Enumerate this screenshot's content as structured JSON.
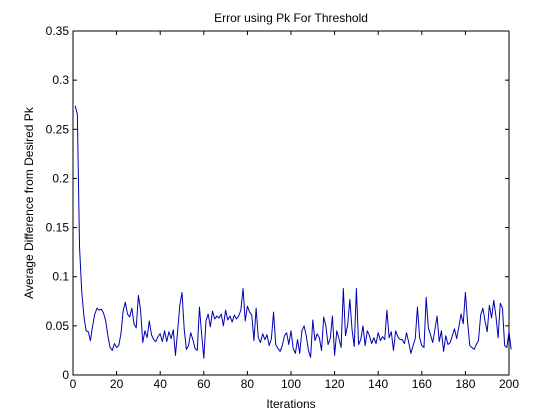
{
  "chart_data": {
    "type": "line",
    "title": "Error using Pk For Threshold",
    "xlabel": "Iterations",
    "ylabel": "Average Difference from Desired Pk",
    "xlim": [
      0,
      200
    ],
    "ylim": [
      0,
      0.35
    ],
    "grid": false,
    "x_ticks": [
      0,
      20,
      40,
      60,
      80,
      100,
      120,
      140,
      160,
      180,
      200
    ],
    "x_tick_labels": [
      "0",
      "20",
      "40",
      "60",
      "80",
      "100",
      "120",
      "140",
      "160",
      "180",
      "200"
    ],
    "y_ticks": [
      0,
      0.05,
      0.1,
      0.15,
      0.2,
      0.25,
      0.3,
      0.35
    ],
    "y_tick_labels": [
      "0",
      "0.05",
      "0.1",
      "0.15",
      "0.2",
      "0.25",
      "0.3",
      "0.35"
    ],
    "series": [
      {
        "color": "#0000b4",
        "x_start": 1,
        "x_step": 1,
        "values": [
          0.274,
          0.265,
          0.13,
          0.085,
          0.06,
          0.045,
          0.044,
          0.035,
          0.05,
          0.062,
          0.068,
          0.066,
          0.067,
          0.063,
          0.055,
          0.04,
          0.028,
          0.025,
          0.032,
          0.028,
          0.03,
          0.042,
          0.065,
          0.074,
          0.062,
          0.059,
          0.068,
          0.052,
          0.048,
          0.081,
          0.066,
          0.033,
          0.045,
          0.038,
          0.055,
          0.041,
          0.036,
          0.034,
          0.039,
          0.042,
          0.034,
          0.045,
          0.034,
          0.044,
          0.037,
          0.046,
          0.02,
          0.045,
          0.071,
          0.084,
          0.047,
          0.026,
          0.03,
          0.043,
          0.036,
          0.027,
          0.025,
          0.069,
          0.042,
          0.017,
          0.055,
          0.062,
          0.049,
          0.065,
          0.057,
          0.06,
          0.058,
          0.062,
          0.05,
          0.066,
          0.056,
          0.06,
          0.054,
          0.061,
          0.057,
          0.06,
          0.066,
          0.088,
          0.055,
          0.07,
          0.064,
          0.061,
          0.035,
          0.068,
          0.038,
          0.033,
          0.042,
          0.036,
          0.041,
          0.03,
          0.037,
          0.064,
          0.031,
          0.027,
          0.024,
          0.03,
          0.04,
          0.043,
          0.031,
          0.045,
          0.027,
          0.022,
          0.036,
          0.022,
          0.045,
          0.05,
          0.04,
          0.025,
          0.018,
          0.056,
          0.035,
          0.042,
          0.038,
          0.025,
          0.059,
          0.05,
          0.031,
          0.037,
          0.06,
          0.02,
          0.045,
          0.037,
          0.028,
          0.088,
          0.04,
          0.051,
          0.077,
          0.046,
          0.029,
          0.088,
          0.031,
          0.036,
          0.05,
          0.03,
          0.045,
          0.04,
          0.032,
          0.038,
          0.032,
          0.043,
          0.035,
          0.039,
          0.036,
          0.066,
          0.038,
          0.044,
          0.025,
          0.045,
          0.039,
          0.036,
          0.036,
          0.032,
          0.043,
          0.033,
          0.022,
          0.03,
          0.037,
          0.069,
          0.038,
          0.03,
          0.028,
          0.079,
          0.048,
          0.041,
          0.033,
          0.046,
          0.06,
          0.034,
          0.045,
          0.024,
          0.04,
          0.031,
          0.033,
          0.04,
          0.047,
          0.037,
          0.049,
          0.062,
          0.052,
          0.084,
          0.054,
          0.03,
          0.028,
          0.026,
          0.031,
          0.035,
          0.061,
          0.068,
          0.055,
          0.044,
          0.071,
          0.058,
          0.076,
          0.06,
          0.038,
          0.073,
          0.068,
          0.03,
          0.028,
          0.044,
          0.026
        ]
      }
    ]
  }
}
